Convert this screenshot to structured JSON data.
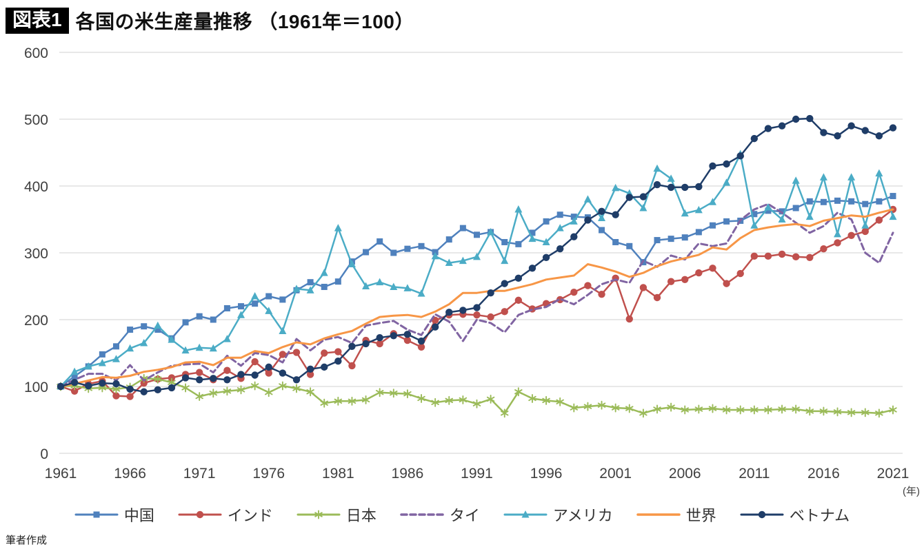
{
  "header": {
    "badge": "図表1",
    "title": "各国の米生産量推移 （1961年＝100）"
  },
  "footnote": "筆者作成",
  "axis": {
    "x_unit_label": "(年)"
  },
  "chart_data": {
    "type": "line",
    "title": "各国の米生産量推移（1961年＝100）",
    "x_start": 1961,
    "x_end": 2021,
    "x_ticks": [
      1961,
      1966,
      1971,
      1976,
      1981,
      1986,
      1991,
      1996,
      2001,
      2006,
      2011,
      2016,
      2021
    ],
    "ylim": [
      0,
      600
    ],
    "y_ticks": [
      0,
      100,
      200,
      300,
      400,
      500,
      600
    ],
    "grid": true,
    "legend_position": "bottom",
    "series": [
      {
        "key": "china",
        "name": "中国",
        "color": "#4f81bd",
        "marker": "square",
        "dash": false,
        "width": 2.5,
        "values": [
          100,
          115,
          130,
          148,
          160,
          185,
          190,
          185,
          172,
          196,
          205,
          200,
          217,
          220,
          224,
          235,
          230,
          244,
          256,
          249,
          257,
          287,
          301,
          317,
          300,
          306,
          310,
          301,
          320,
          337,
          327,
          331,
          316,
          313,
          330,
          347,
          357,
          354,
          353,
          334,
          316,
          310,
          286,
          319,
          321,
          323,
          331,
          341,
          347,
          348,
          358,
          363,
          362,
          367,
          377,
          376,
          378,
          377,
          373,
          377,
          385
        ]
      },
      {
        "key": "india",
        "name": "インド",
        "color": "#c0504d",
        "marker": "circle",
        "dash": false,
        "width": 2.5,
        "values": [
          100,
          93,
          104,
          108,
          86,
          85,
          105,
          111,
          113,
          118,
          121,
          110,
          124,
          112,
          137,
          120,
          148,
          151,
          118,
          150,
          152,
          131,
          169,
          164,
          179,
          169,
          159,
          199,
          207,
          208,
          207,
          204,
          212,
          229,
          216,
          224,
          230,
          241,
          251,
          238,
          262,
          201,
          248,
          233,
          257,
          260,
          270,
          277,
          254,
          269,
          295,
          295,
          298,
          294,
          293,
          306,
          315,
          326,
          332,
          349,
          365
        ]
      },
      {
        "key": "japan",
        "name": "日本",
        "color": "#9bbb59",
        "marker": "asterisk",
        "dash": false,
        "width": 2.5,
        "values": [
          100,
          101,
          97,
          98,
          96,
          99,
          112,
          111,
          106,
          98,
          85,
          90,
          93,
          95,
          101,
          91,
          101,
          97,
          92,
          75,
          78,
          78,
          80,
          91,
          90,
          89,
          82,
          76,
          79,
          80,
          74,
          81,
          60,
          92,
          82,
          79,
          77,
          68,
          70,
          72,
          68,
          67,
          60,
          66,
          69,
          65,
          66,
          67,
          65,
          65,
          65,
          65,
          66,
          66,
          63,
          63,
          62,
          61,
          61,
          60,
          65
        ]
      },
      {
        "key": "thailand",
        "name": "タイ",
        "color": "#8064a2",
        "marker": "none",
        "dash": true,
        "width": 3,
        "values": [
          100,
          110,
          119,
          119,
          109,
          132,
          109,
          121,
          131,
          133,
          134,
          121,
          146,
          131,
          150,
          147,
          136,
          171,
          154,
          170,
          174,
          165,
          191,
          195,
          198,
          185,
          177,
          208,
          197,
          168,
          200,
          195,
          181,
          207,
          215,
          219,
          231,
          223,
          237,
          253,
          260,
          255,
          288,
          279,
          296,
          290,
          314,
          310,
          314,
          349,
          365,
          373,
          360,
          345,
          330,
          340,
          360,
          350,
          300,
          285,
          330
        ]
      },
      {
        "key": "usa",
        "name": "アメリカ",
        "color": "#4bacc6",
        "marker": "triangle",
        "dash": false,
        "width": 2.5,
        "values": [
          100,
          122,
          130,
          135,
          141,
          157,
          165,
          191,
          170,
          154,
          158,
          157,
          171,
          207,
          235,
          213,
          183,
          246,
          244,
          270,
          337,
          283,
          250,
          256,
          249,
          247,
          239,
          295,
          285,
          288,
          294,
          331,
          288,
          365,
          321,
          316,
          337,
          347,
          380,
          352,
          397,
          389,
          367,
          426,
          411,
          359,
          364,
          376,
          405,
          448,
          341,
          368,
          350,
          408,
          354,
          413,
          328,
          413,
          341,
          419,
          354
        ]
      },
      {
        "key": "world",
        "name": "世界",
        "color": "#f79646",
        "marker": "none",
        "dash": false,
        "width": 3,
        "values": [
          100,
          104,
          109,
          114,
          113,
          116,
          122,
          125,
          129,
          136,
          137,
          132,
          143,
          143,
          153,
          150,
          159,
          166,
          163,
          172,
          178,
          183,
          194,
          204,
          206,
          207,
          204,
          212,
          223,
          240,
          240,
          243,
          243,
          248,
          253,
          260,
          263,
          266,
          283,
          278,
          272,
          264,
          270,
          280,
          287,
          292,
          297,
          308,
          305,
          322,
          334,
          338,
          341,
          343,
          340,
          348,
          352,
          356,
          354,
          360,
          365
        ]
      },
      {
        "key": "vietnam",
        "name": "ベトナム",
        "color": "#1f3d68",
        "marker": "circle",
        "dash": false,
        "width": 2.5,
        "values": [
          100,
          106,
          101,
          105,
          104,
          96,
          92,
          95,
          98,
          113,
          110,
          112,
          110,
          118,
          117,
          129,
          120,
          110,
          126,
          129,
          138,
          160,
          164,
          173,
          176,
          178,
          168,
          189,
          211,
          214,
          218,
          240,
          254,
          262,
          277,
          293,
          306,
          324,
          349,
          362,
          357,
          383,
          384,
          402,
          398,
          398,
          399,
          430,
          433,
          445,
          471,
          486,
          490,
          500,
          501,
          480,
          475,
          490,
          483,
          475,
          487
        ]
      }
    ]
  }
}
